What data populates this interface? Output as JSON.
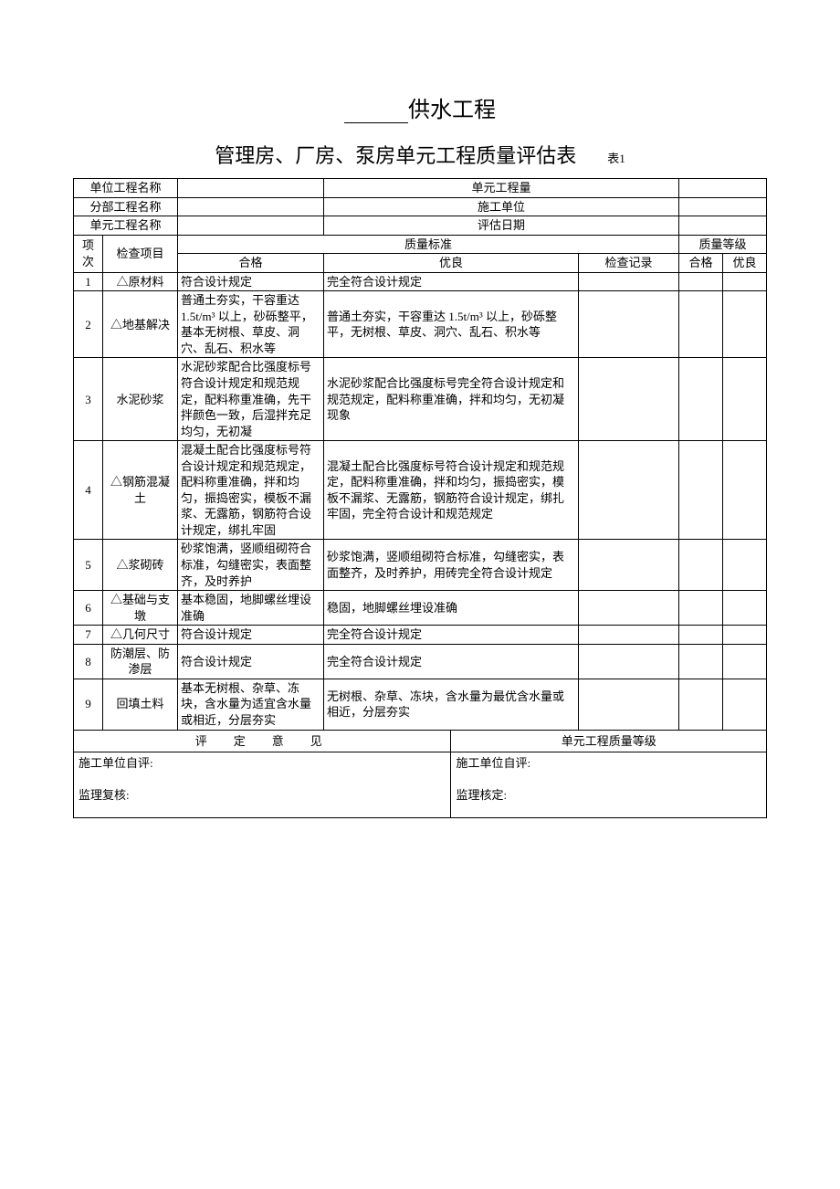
{
  "title": {
    "main_suffix": "供水工程",
    "sub": "管理房、厂房、泵房单元工程质量评估表",
    "table_num": "表1"
  },
  "header": {
    "unit_project_name_label": "单位工程名称",
    "unit_project_qty_label": "单元工程量",
    "part_project_name_label": "分部工程名称",
    "construction_unit_label": "施工单位",
    "unit_project_item_label": "单元工程名称",
    "eval_date_label": "评估日期"
  },
  "columns": {
    "item_num": "项次",
    "check_item": "检查项目",
    "quality_std": "质量标准",
    "qualified": "合格",
    "excellent": "优良",
    "check_record": "检查记录",
    "quality_grade": "质量等级",
    "pass": "合格",
    "good": "优良"
  },
  "rows": [
    {
      "num": "1",
      "item": "△原材料",
      "qualified": "符合设计规定",
      "excellent": "完全符合设计规定"
    },
    {
      "num": "2",
      "item": "△地基解决",
      "qualified": "普通土夯实，干容重达 1.5t/m³ 以上，砂砾整平，基本无树根、草皮、洞穴、乱石、积水等",
      "excellent": "普通土夯实，干容重达 1.5t/m³ 以上，砂砾整平，无树根、草皮、洞穴、乱石、积水等"
    },
    {
      "num": "3",
      "item": "水泥砂浆",
      "qualified": "水泥砂浆配合比强度标号符合设计规定和规范规定，配料称重准确，先干拌颜色一致，后湿拌充足均匀，无初凝",
      "excellent": "水泥砂浆配合比强度标号完全符合设计规定和规范规定，配料称重准确，拌和均匀，无初凝现象"
    },
    {
      "num": "4",
      "item": "△钢筋混凝土",
      "qualified": "混凝土配合比强度标号符合设计规定和规范规定，配料称重准确，拌和均匀，振捣密实，模板不漏浆、无露筋，钢筋符合设计规定，绑扎牢固",
      "excellent": "混凝土配合比强度标号符合设计规定和规范规定，配料称重准确，拌和均匀，振捣密实，模板不漏浆、无露筋，钢筋符合设计规定，绑扎牢固，完全符合设计和规范规定"
    },
    {
      "num": "5",
      "item": "△浆砌砖",
      "qualified": "砂浆饱满，竖顺组砌符合标准，勾缝密实，表面整齐，及时养护",
      "excellent": "砂浆饱满，竖顺组砌符合标准，勾缝密实，表面整齐，及时养护，用砖完全符合设计规定"
    },
    {
      "num": "6",
      "item": "△基础与支墩",
      "qualified": "基本稳固，地脚螺丝埋设准确",
      "excellent": "稳固，地脚螺丝埋设准确"
    },
    {
      "num": "7",
      "item": "△几何尺寸",
      "qualified": "符合设计规定",
      "excellent": "完全符合设计规定"
    },
    {
      "num": "8",
      "item": "防潮层、防渗层",
      "qualified": "符合设计规定",
      "excellent": "完全符合设计规定"
    },
    {
      "num": "9",
      "item": "回填土料",
      "qualified": "基本无树根、杂草、冻块，含水量为适宜含水量或相近，分层夯实",
      "excellent": "无树根、杂草、冻块，含水量为最优含水量或相近，分层夯实"
    }
  ],
  "footer": {
    "eval_opinion": "评　定　意　见",
    "unit_quality_grade": "单元工程质量等级",
    "self_eval": "施工单位自评:",
    "supervisor_review": "监理复核:",
    "self_eval2": "施工单位自评:",
    "supervisor_confirm": "监理核定:"
  }
}
